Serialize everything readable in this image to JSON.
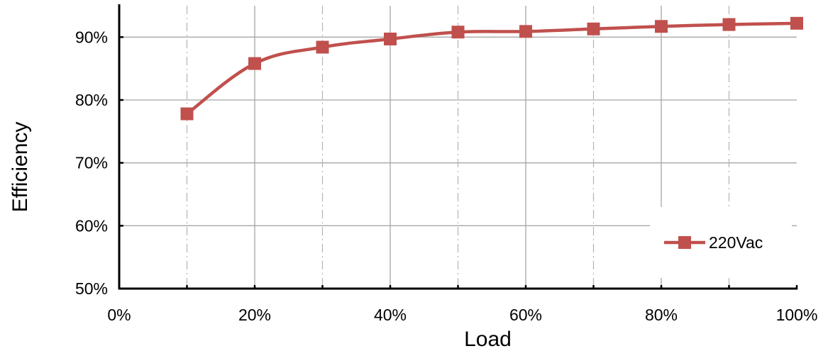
{
  "chart_data": {
    "type": "line",
    "title": "",
    "xlabel": "Load",
    "ylabel": "Efficiency",
    "xlim": [
      0,
      100
    ],
    "ylim": [
      50,
      95
    ],
    "x_ticks": [
      0,
      20,
      40,
      60,
      80,
      100
    ],
    "x_tick_labels": [
      "0%",
      "20%",
      "40%",
      "60%",
      "80%",
      "100%"
    ],
    "x_minor_grid": [
      10,
      30,
      50,
      70,
      90
    ],
    "y_ticks": [
      50,
      60,
      70,
      80,
      90
    ],
    "y_tick_labels": [
      "50%",
      "60%",
      "70%",
      "80%",
      "90%"
    ],
    "grid": true,
    "legend_position": "bottom-right",
    "series": [
      {
        "name": "220Vac",
        "color": "#c0504d",
        "marker": "square",
        "x": [
          10,
          20,
          30,
          40,
          50,
          60,
          70,
          80,
          90,
          100
        ],
        "y": [
          77.8,
          85.8,
          88.4,
          89.7,
          90.8,
          90.9,
          91.3,
          91.7,
          92.0,
          92.2
        ]
      }
    ]
  }
}
